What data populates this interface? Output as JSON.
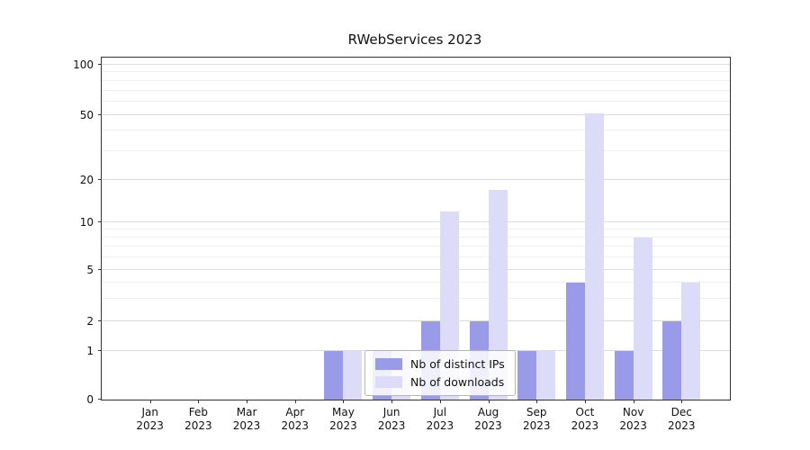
{
  "title": "RWebServices 2023",
  "chart_data": {
    "type": "bar",
    "title": "RWebServices 2023",
    "categories": [
      "Jan",
      "Feb",
      "Mar",
      "Apr",
      "May",
      "Jun",
      "Jul",
      "Aug",
      "Sep",
      "Oct",
      "Nov",
      "Dec"
    ],
    "year": "2023",
    "series": [
      {
        "name": "Nb of distinct IPs",
        "color": "#999be8",
        "values": [
          0,
          0,
          0,
          0,
          1,
          1,
          2,
          2,
          1,
          4,
          1,
          2
        ]
      },
      {
        "name": "Nb of downloads",
        "color": "#dcdcf8",
        "values": [
          0,
          0,
          0,
          0,
          1,
          1,
          12,
          17,
          1,
          51,
          8,
          4
        ]
      }
    ],
    "yticks": [
      0,
      1,
      2,
      5,
      10,
      20,
      50,
      100
    ],
    "minor_yticks": [
      3,
      4,
      6,
      7,
      8,
      9,
      30,
      40,
      60,
      70,
      80,
      90
    ],
    "y_scale_stops": [
      [
        0,
        0
      ],
      [
        1,
        0.142
      ],
      [
        2,
        0.229
      ],
      [
        5,
        0.379
      ],
      [
        10,
        0.518
      ],
      [
        20,
        0.642
      ],
      [
        50,
        0.832
      ],
      [
        100,
        0.979
      ]
    ],
    "ylim": [
      0,
      100
    ],
    "grid": "horizontal",
    "legend_position": "lower-center"
  }
}
